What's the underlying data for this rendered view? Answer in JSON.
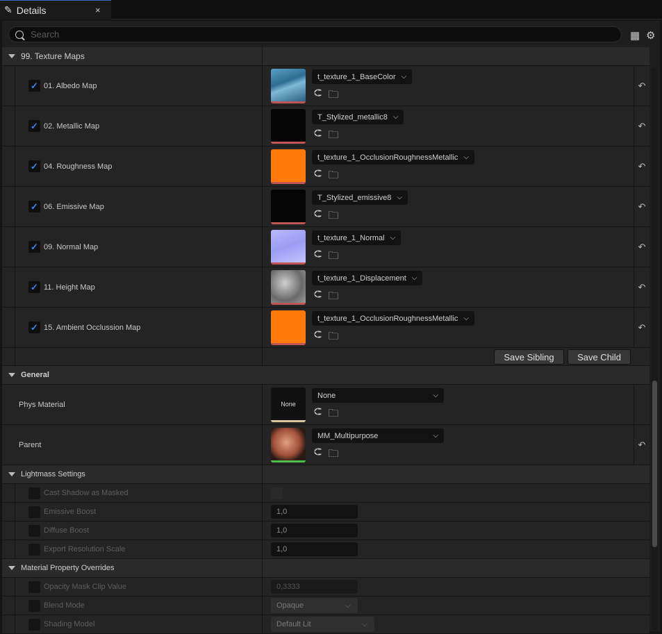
{
  "tab": {
    "title": "Details",
    "icon": "pencil-icon",
    "close": "×"
  },
  "search": {
    "placeholder": "Search"
  },
  "texture_maps": {
    "header": "99. Texture Maps",
    "items": [
      {
        "label": "01. Albedo Map",
        "checked": true,
        "texture": "t_texture_1_BaseColor",
        "thumb": "linear-gradient(160deg,#5a9ec4,#2e6e92 40%,#7eb9d6 55%,#2b5f80)"
      },
      {
        "label": "02. Metallic Map",
        "checked": true,
        "texture": "T_Stylized_metallic8",
        "thumb": "#050505"
      },
      {
        "label": "04. Roughness Map",
        "checked": true,
        "texture": "t_texture_1_OcclusionRoughnessMetallic",
        "thumb": "#ff7a0a"
      },
      {
        "label": "06. Emissive Map",
        "checked": true,
        "texture": "T_Stylized_emissive8",
        "thumb": "#050505"
      },
      {
        "label": "09. Normal Map",
        "checked": true,
        "texture": "t_texture_1_Normal",
        "thumb": "linear-gradient(160deg,#b8b8ff,#9c9cf4 50%,#c4c4ff)"
      },
      {
        "label": "11. Height Map",
        "checked": true,
        "texture": "t_texture_1_Displacement",
        "thumb": "radial-gradient(circle at 40% 40%,#cfcfcf,#6a6a6a 60%,#999)"
      },
      {
        "label": "15. Ambient Occlussion Map",
        "checked": true,
        "texture": "t_texture_1_OcclusionRoughnessMetallic",
        "thumb": "#ff7a0a"
      }
    ],
    "save_sibling": "Save Sibling",
    "save_child": "Save Child"
  },
  "general": {
    "header": "General",
    "phys_material": {
      "label": "Phys Material",
      "thumb_text": "None",
      "value": "None"
    },
    "parent": {
      "label": "Parent",
      "value": "MM_Multipurpose"
    }
  },
  "lightmass": {
    "header": "Lightmass Settings",
    "cast_shadow": {
      "label": "Cast Shadow as Masked"
    },
    "emissive_boost": {
      "label": "Emissive Boost",
      "value": "1,0"
    },
    "diffuse_boost": {
      "label": "Diffuse Boost",
      "value": "1,0"
    },
    "export_res": {
      "label": "Export Resolution Scale",
      "value": "1,0"
    }
  },
  "overrides": {
    "header": "Material Property Overrides",
    "opacity_clip": {
      "label": "Opacity Mask Clip Value",
      "value": "0,3333"
    },
    "blend_mode": {
      "label": "Blend Mode",
      "value": "Opaque"
    },
    "shading_model": {
      "label": "Shading Model",
      "value": "Default Lit"
    }
  },
  "colors": {
    "accent": "#3a86e8",
    "orange": "#ff7a0a"
  }
}
